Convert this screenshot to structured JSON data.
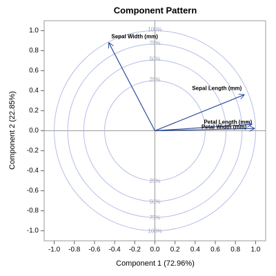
{
  "chart_data": {
    "type": "vector",
    "title": "Component Pattern",
    "xlabel": "Component 1 (72.96%)",
    "ylabel": "Component 2 (22.85%)",
    "color": "#2b4a9c",
    "circle_color": "#b4bde6",
    "series": [
      {
        "name": "Sepal Length (mm)",
        "x": 0.89,
        "y": 0.361
      },
      {
        "name": "Sepal Width (mm)",
        "x": -0.46,
        "y": 0.883
      },
      {
        "name": "Petal Length (mm)",
        "x": 0.992,
        "y": 0.023
      },
      {
        "name": "Petal Width (mm)",
        "x": 0.965,
        "y": 0.064
      }
    ],
    "circles": [
      {
        "value": 25,
        "label": "25%"
      },
      {
        "value": 50,
        "label": "50%"
      },
      {
        "value": 75,
        "label": "75%"
      },
      {
        "value": 100,
        "label": "100%"
      }
    ],
    "xlim": [
      -1.1,
      1.1
    ],
    "ylim": [
      -1.1,
      1.1
    ],
    "xticks": [
      {
        "value": -1,
        "label": "-1.0"
      },
      -0.8,
      -0.6,
      -0.4,
      -0.2,
      {
        "value": 0,
        "label": "0.0"
      },
      0.2,
      0.4,
      0.6,
      0.8,
      {
        "value": 1,
        "label": "1.0"
      }
    ],
    "yticks": [
      {
        "value": -1,
        "label": "-1.0"
      },
      -0.8,
      -0.6,
      -0.4,
      -0.2,
      {
        "value": 0,
        "label": "0.0"
      },
      0.2,
      0.4,
      0.6,
      0.8,
      {
        "value": 1,
        "label": "1.0"
      }
    ]
  }
}
